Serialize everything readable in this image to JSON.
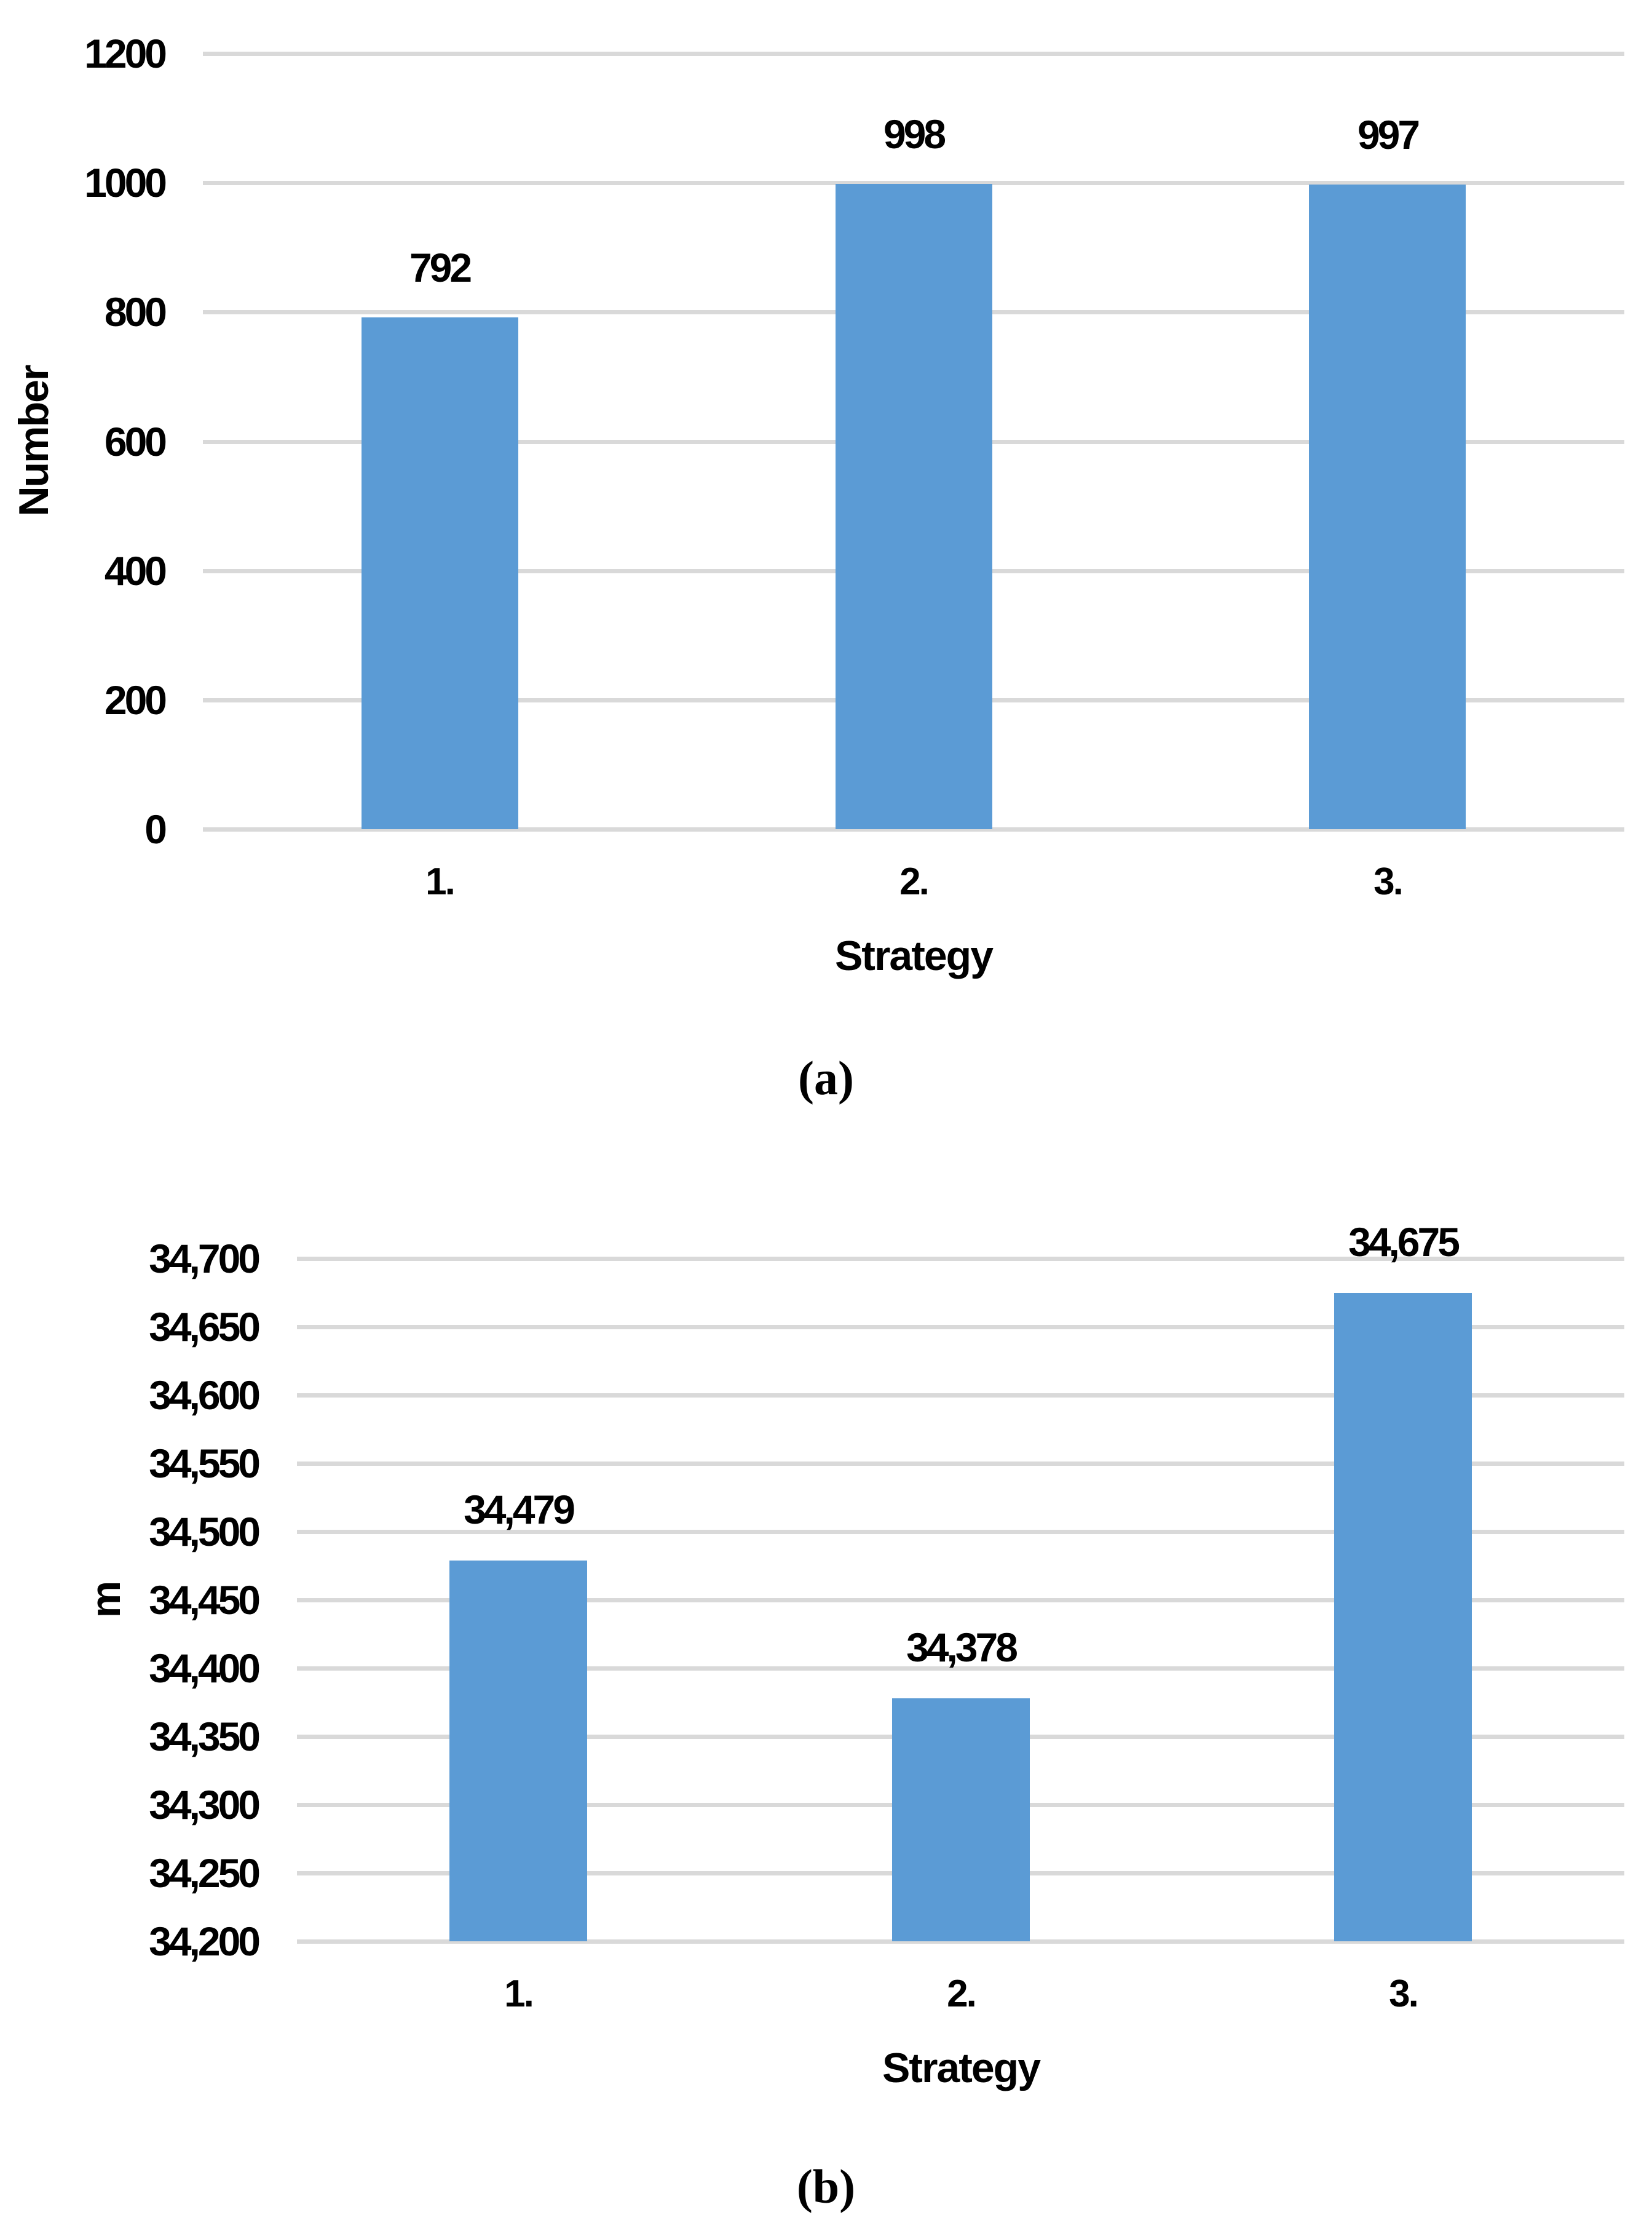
{
  "figure": {
    "captions": {
      "a": "(a)",
      "b": "(b)"
    }
  },
  "colors": {
    "bar": "#5B9BD5",
    "gridline": "#D9D9D9",
    "text": "#000000"
  },
  "chart_data": [
    {
      "id": "a",
      "type": "bar",
      "title": "",
      "categories": [
        "1.",
        "2.",
        "3."
      ],
      "values": [
        792,
        998,
        997
      ],
      "data_labels": [
        "792",
        "998",
        "997"
      ],
      "xlabel": "Strategy",
      "ylabel": "Number",
      "ylim": [
        0,
        1200
      ],
      "ytick_values": [
        1200,
        1000,
        800,
        600,
        400,
        200,
        0
      ],
      "ytick_labels": [
        "1200",
        "1000",
        "800",
        "600",
        "400",
        "200",
        "0"
      ],
      "grid": "horizontal",
      "legend": "none",
      "bar_color": "#5B9BD5"
    },
    {
      "id": "b",
      "type": "bar",
      "title": "",
      "categories": [
        "1.",
        "2.",
        "3."
      ],
      "values": [
        34479,
        34378,
        34675
      ],
      "data_labels": [
        "34,479",
        "34,378",
        "34,675"
      ],
      "xlabel": "Strategy",
      "ylabel": "m",
      "ylim": [
        34200,
        34700
      ],
      "ytick_values": [
        34700,
        34650,
        34600,
        34550,
        34500,
        34450,
        34400,
        34350,
        34300,
        34250,
        34200
      ],
      "ytick_labels": [
        "34,700",
        "34,650",
        "34,600",
        "34,550",
        "34,500",
        "34,450",
        "34,400",
        "34,350",
        "34,300",
        "34,250",
        "34,200"
      ],
      "grid": "horizontal",
      "legend": "none",
      "bar_color": "#5B9BD5"
    }
  ]
}
